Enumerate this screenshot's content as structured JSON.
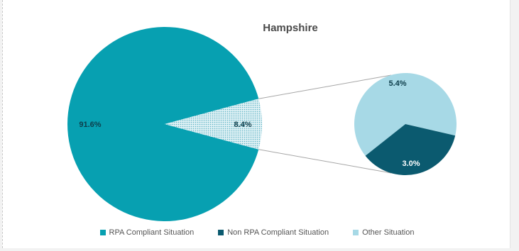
{
  "chart_data": {
    "type": "pie",
    "subtype": "pie-of-pie",
    "title": "Hampshire",
    "slices": [
      {
        "label": "RPA Compliant Situation",
        "value": 91.6,
        "value_label": "91.6%",
        "color": "#07a0b1"
      },
      {
        "label": "Other",
        "value": 8.4,
        "value_label": "8.4%",
        "color": "#bfe2ea"
      }
    ],
    "secondary_slices": [
      {
        "label": "Other Situation",
        "value": 5.4,
        "value_label": "5.4%",
        "color": "#a7d9e6"
      },
      {
        "label": "Non RPA Compliant Situation",
        "value": 3.0,
        "value_label": "3.0%",
        "color": "#0b5a6f"
      }
    ],
    "legend": [
      {
        "label": "RPA Compliant Situation",
        "color": "#07a0b1"
      },
      {
        "label": "Non RPA Compliant Situation",
        "color": "#0b5a6f"
      },
      {
        "label": "Other Situation",
        "color": "#a7d9e6"
      }
    ],
    "legend_position": "bottom"
  }
}
